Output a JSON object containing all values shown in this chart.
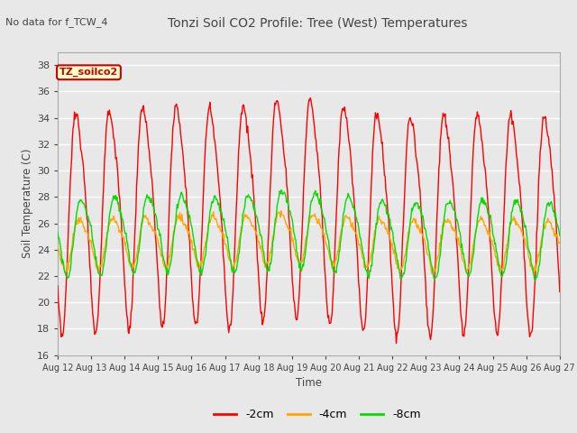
{
  "title": "Tonzi Soil CO2 Profile: Tree (West) Temperatures",
  "subtitle": "No data for f_TCW_4",
  "ylabel": "Soil Temperature (C)",
  "xlabel": "Time",
  "legend_label": "TZ_soilco2",
  "ylim": [
    16,
    39
  ],
  "yticks": [
    16,
    18,
    20,
    22,
    24,
    26,
    28,
    30,
    32,
    34,
    36,
    38
  ],
  "xtick_labels": [
    "Aug 12",
    "Aug 13",
    "Aug 14",
    "Aug 15",
    "Aug 16",
    "Aug 17",
    "Aug 18",
    "Aug 19",
    "Aug 20",
    "Aug 21",
    "Aug 22",
    "Aug 23",
    "Aug 24",
    "Aug 25",
    "Aug 26",
    "Aug 27"
  ],
  "series": {
    "neg2cm": {
      "label": "-2cm",
      "color": "#ff0000"
    },
    "neg4cm": {
      "label": "-4cm",
      "color": "#ffa500"
    },
    "neg8cm": {
      "label": "-8cm",
      "color": "#00dd00"
    }
  },
  "bg_color": "#e8e8e8",
  "grid_color": "#ffffff",
  "title_color": "#444444"
}
